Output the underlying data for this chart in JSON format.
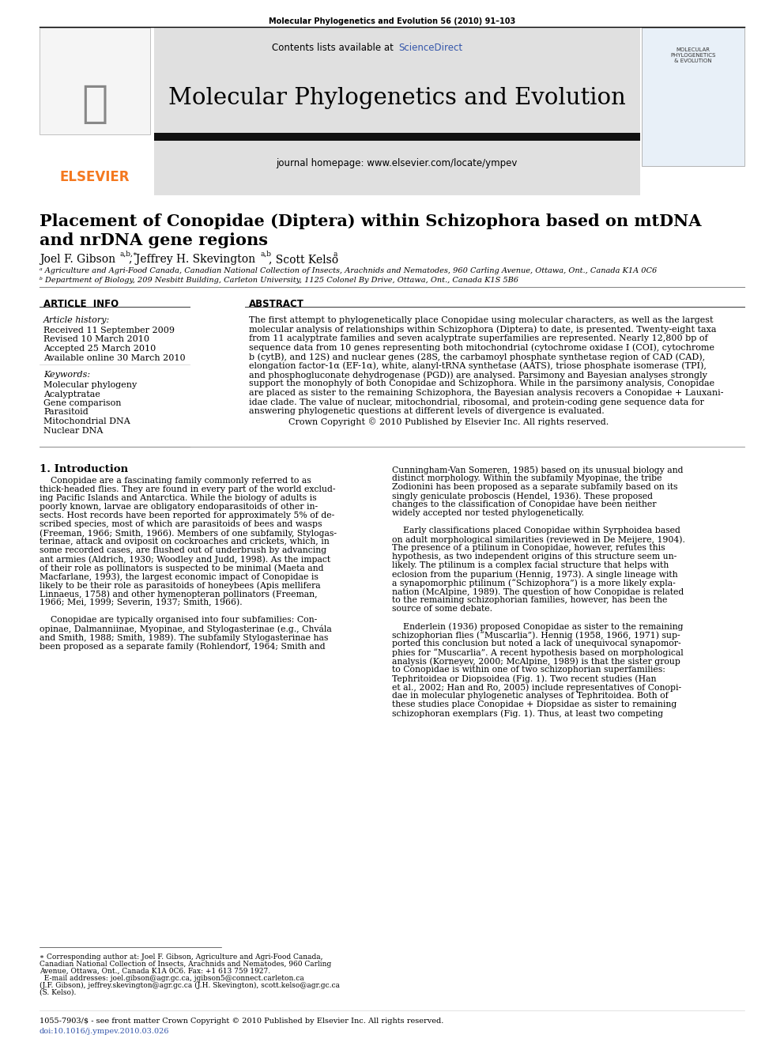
{
  "page_bg": "#ffffff",
  "top_journal_ref": "Molecular Phylogenetics and Evolution 56 (2010) 91–103",
  "header_bg": "#e0e0e0",
  "contents_line_pre": "Contents lists available at ",
  "contents_sciencedirect": "ScienceDirect",
  "sciencedirect_color": "#3355aa",
  "journal_title": "Molecular Phylogenetics and Evolution",
  "journal_homepage": "journal homepage: www.elsevier.com/locate/ympev",
  "elsevier_color": "#f47920",
  "elsevier_text": "ELSEVIER",
  "article_title_line1": "Placement of Conopidae (Diptera) within Schizophora based on mtDNA",
  "article_title_line2": "and nrDNA gene regions",
  "affil1": "ᵃ Agriculture and Agri-Food Canada, Canadian National Collection of Insects, Arachnids and Nematodes, 960 Carling Avenue, Ottawa, Ont., Canada K1A 0C6",
  "affil2": "ᵇ Department of Biology, 209 Nesbitt Building, Carleton University, 1125 Colonel By Drive, Ottawa, Ont., Canada K1S 5B6",
  "section_article_info": "ARTICLE  INFO",
  "section_abstract": "ABSTRACT",
  "article_history_label": "Article history:",
  "received": "Received 11 September 2009",
  "revised": "Revised 10 March 2010",
  "accepted": "Accepted 25 March 2010",
  "available": "Available online 30 March 2010",
  "keywords_label": "Keywords:",
  "keywords": [
    "Molecular phylogeny",
    "Acalyptratae",
    "Gene comparison",
    "Parasitoid",
    "Mitochondrial DNA",
    "Nuclear DNA"
  ],
  "copyright_line": "Crown Copyright © 2010 Published by Elsevier Inc. All rights reserved.",
  "section1_title": "1. Introduction",
  "footer_line1": "1055-7903/$ - see front matter Crown Copyright © 2010 Published by Elsevier Inc. All rights reserved.",
  "footer_line2": "doi:10.1016/j.ympev.2010.03.026",
  "link_color": "#3355aa",
  "black": "#000000",
  "dark_gray": "#333333",
  "mid_gray": "#888888",
  "light_gray": "#cccccc"
}
